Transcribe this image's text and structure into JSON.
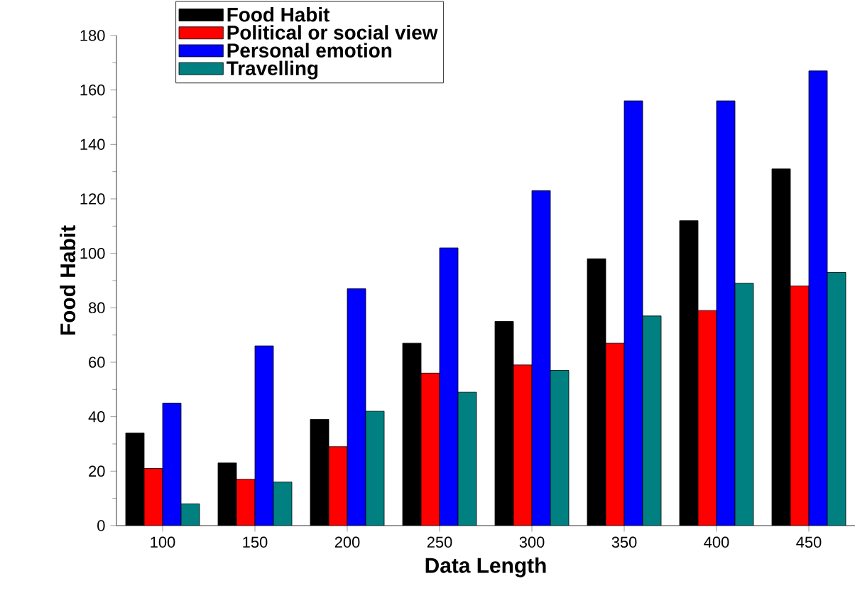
{
  "chart_data": {
    "type": "bar",
    "xlabel": "Data Length",
    "ylabel": "Food Habit",
    "categories": [
      "100",
      "150",
      "200",
      "250",
      "300",
      "350",
      "400",
      "450"
    ],
    "series": [
      {
        "name": "Food Habit",
        "color": "#000000",
        "values": [
          34,
          23,
          39,
          67,
          75,
          98,
          112,
          131
        ]
      },
      {
        "name": "Political or social view",
        "color": "#ff0000",
        "values": [
          21,
          17,
          29,
          56,
          59,
          67,
          79,
          88
        ]
      },
      {
        "name": "Personal emotion",
        "color": "#0000ff",
        "values": [
          45,
          66,
          87,
          102,
          123,
          156,
          156,
          167
        ]
      },
      {
        "name": "Travelling",
        "color": "#008080",
        "values": [
          8,
          16,
          42,
          49,
          57,
          77,
          89,
          93
        ]
      }
    ],
    "ylim": [
      0,
      180
    ],
    "yticks": [
      0,
      20,
      40,
      60,
      80,
      100,
      120,
      140,
      160,
      180
    ],
    "legend": "top left"
  }
}
